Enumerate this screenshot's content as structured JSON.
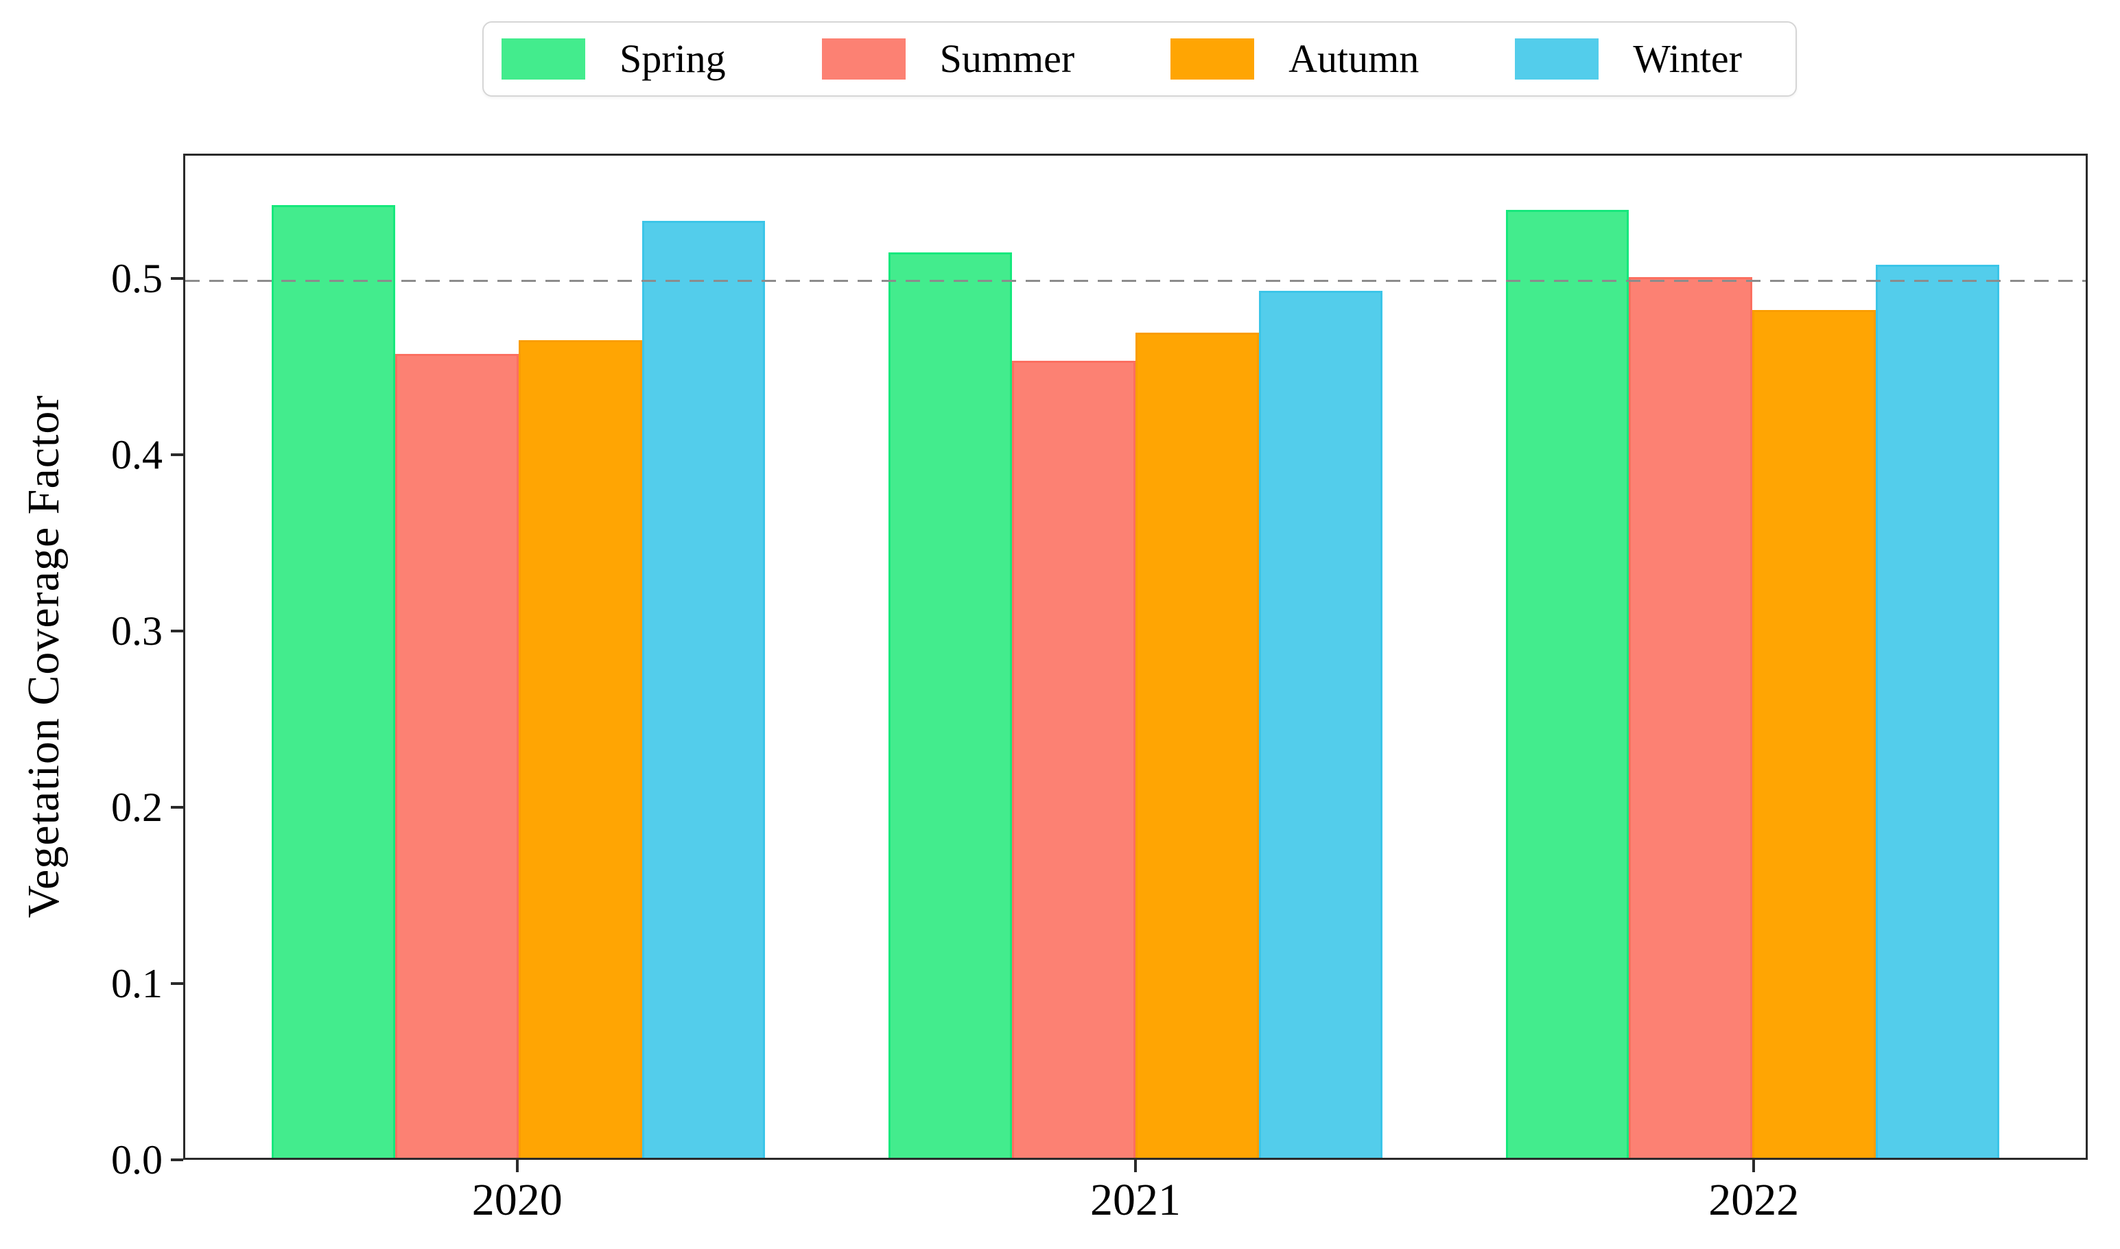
{
  "chart_data": {
    "type": "bar",
    "title": "",
    "xlabel": "",
    "ylabel": "Vegetation Coverage Factor",
    "categories": [
      "2020",
      "2021",
      "2022"
    ],
    "series": [
      {
        "name": "Spring",
        "color": "#43EC8D",
        "edge_color": "#16E87C",
        "values": [
          0.543,
          0.516,
          0.54
        ]
      },
      {
        "name": "Summer",
        "color": "#FC8173",
        "edge_color": "#FB6F60",
        "values": [
          0.458,
          0.454,
          0.502
        ]
      },
      {
        "name": "Autumn",
        "color": "#FFA503",
        "edge_color": "#FA9D00",
        "values": [
          0.466,
          0.47,
          0.483
        ]
      },
      {
        "name": "Winter",
        "color": "#53CDEB",
        "edge_color": "#3BC5E8",
        "values": [
          0.534,
          0.494,
          0.509
        ]
      }
    ],
    "ylim": [
      0,
      0.571
    ],
    "yticks": [
      0.0,
      0.1,
      0.2,
      0.3,
      0.4,
      0.5
    ],
    "ytick_labels": [
      "0.0",
      "0.1",
      "0.2",
      "0.3",
      "0.4",
      "0.5"
    ],
    "reference_line": {
      "y": 0.5,
      "style": "dashed",
      "color": "#8c8c8c"
    },
    "legend": {
      "position": "top-center",
      "entries": [
        "Spring",
        "Summer",
        "Autumn",
        "Winter"
      ]
    },
    "grid": false,
    "spine_color": "#2a2a2a",
    "background": "#ffffff"
  }
}
